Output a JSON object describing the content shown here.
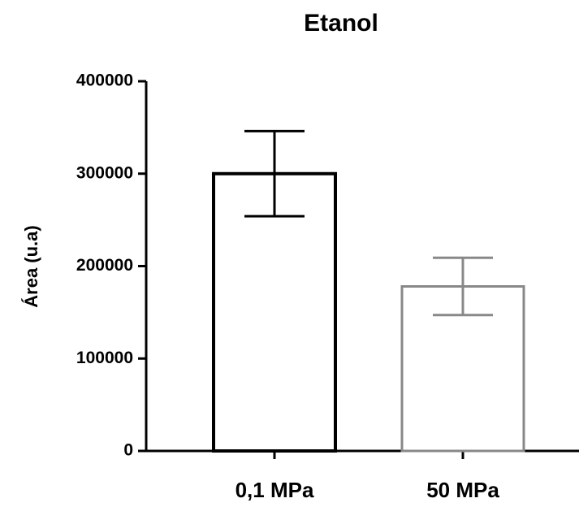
{
  "chart_data": {
    "type": "bar",
    "title": "Etanol",
    "ylabel": "Área (u.a)",
    "categories": [
      "0,1 MPa",
      "50 MPa"
    ],
    "values": [
      300000,
      178000
    ],
    "errors": [
      46000,
      31000
    ],
    "colors": [
      "#000000",
      "#888888"
    ],
    "ylim": [
      0,
      400000
    ],
    "yticks": [
      0,
      100000,
      200000,
      300000,
      400000
    ]
  }
}
